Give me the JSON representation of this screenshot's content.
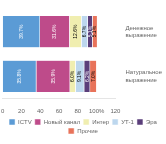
{
  "chart_data": {
    "type": "bar",
    "orientation": "horizontal",
    "stacked": true,
    "categories": [
      "Денежное\nвыражение",
      "Натуральное\nвыражение"
    ],
    "series": [
      {
        "name": "ICTV",
        "color": "#5B9BD5",
        "values": [
          39.7,
          35.8
        ],
        "value_labels": [
          "39.7%",
          "35.8%"
        ]
      },
      {
        "name": "Новый канал",
        "color": "#BE4B8A",
        "values": [
          31.6,
          35.9
        ],
        "value_labels": [
          "31.6%",
          "35.9%"
        ]
      },
      {
        "name": "Интер",
        "color": "#F0EEB0",
        "values": [
          12.6,
          6.0
        ],
        "value_labels": [
          "12.6%",
          "6.0%"
        ]
      },
      {
        "name": "УТ-1",
        "color": "#BDD7EE",
        "values": [
          6.7,
          9.1
        ],
        "value_labels": [
          "6.7%",
          "9.1%"
        ]
      },
      {
        "name": "Эра",
        "color": "#5A3E7A",
        "values": [
          5.1,
          6.2
        ],
        "value_labels": [
          "5.1%",
          "6.2%"
        ]
      },
      {
        "name": "Прочие",
        "color": "#E8735A",
        "values": [
          5.1,
          7.0
        ],
        "value_labels": [
          "5.1%",
          "7.0%"
        ]
      }
    ],
    "xlim": [
      0,
      120
    ],
    "xticks": [
      0,
      20,
      40,
      60,
      80,
      {
        "value": 100,
        "label": "100%"
      },
      120
    ],
    "data_labels": true,
    "grid": false,
    "legend": "bottom"
  }
}
